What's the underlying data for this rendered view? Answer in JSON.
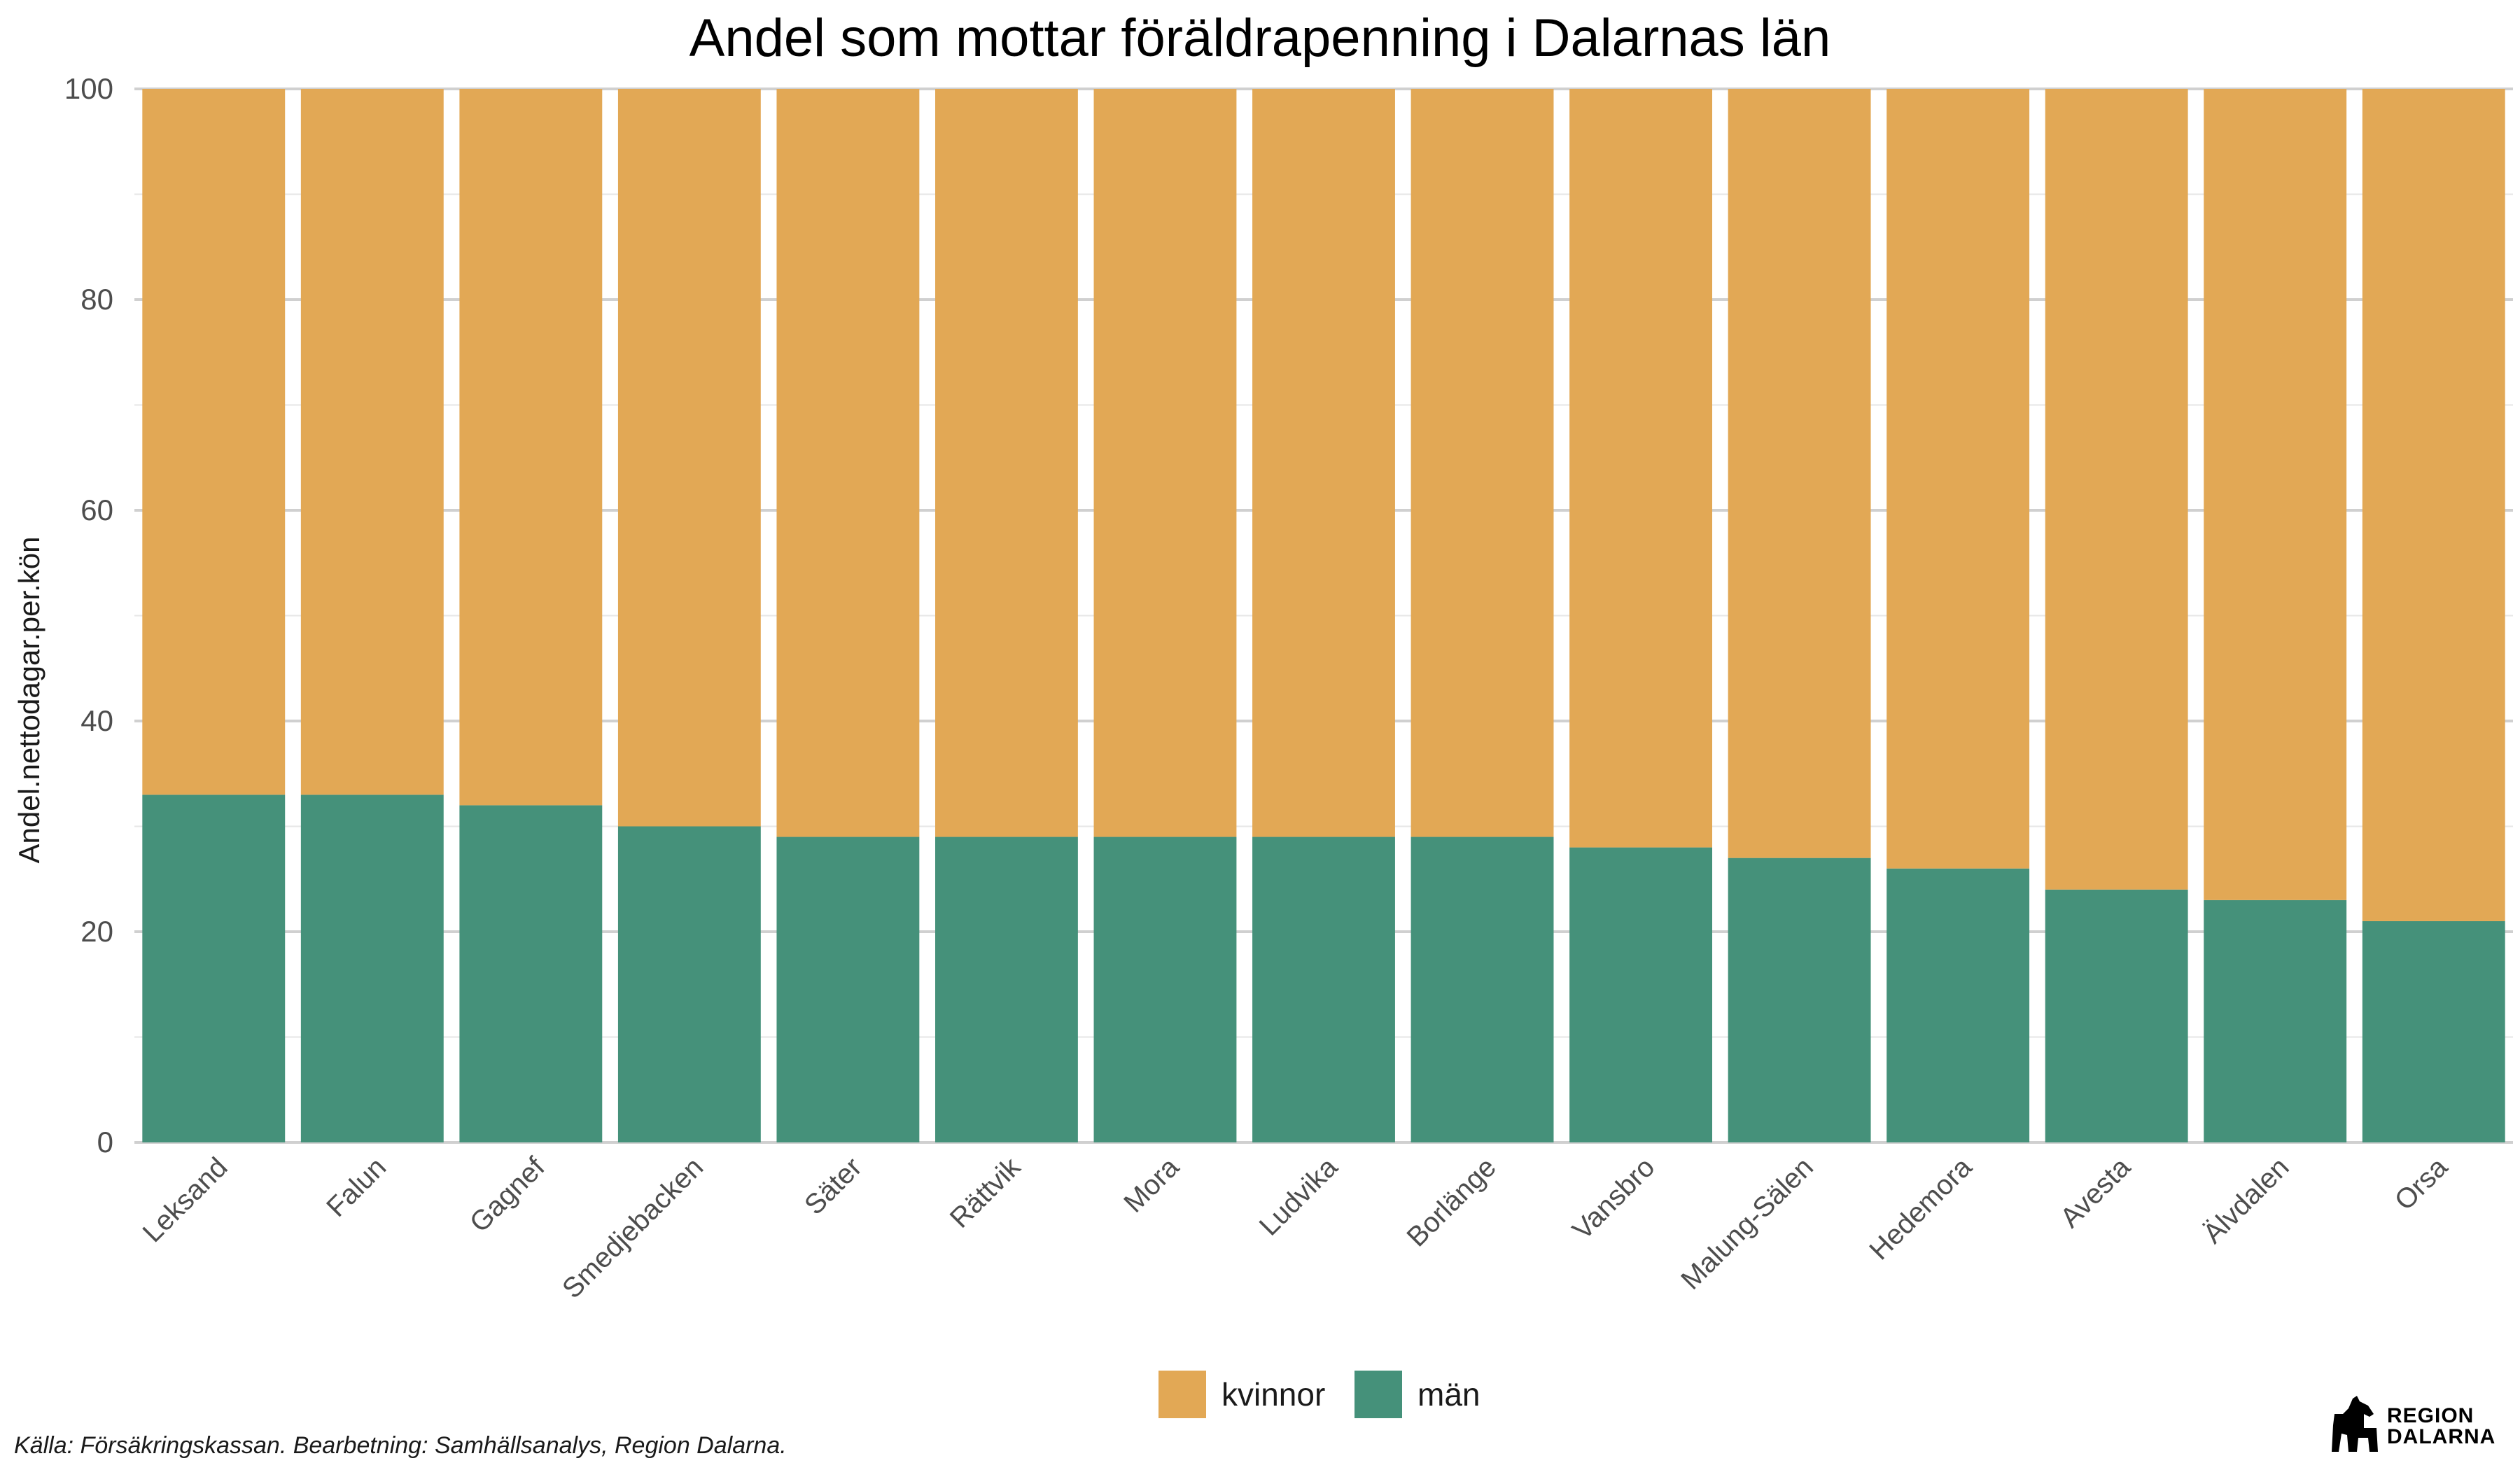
{
  "chart_data": {
    "type": "bar",
    "stacked": true,
    "title": "Andel som mottar föräldrapenning i Dalarnas län",
    "ylabel": "Andel.nettodagar.per.kön",
    "xlabel": "",
    "ylim": [
      0,
      100
    ],
    "yticks": [
      0,
      20,
      40,
      60,
      80,
      100
    ],
    "categories": [
      "Leksand",
      "Falun",
      "Gagnef",
      "Smedjebacken",
      "Säter",
      "Rättvik",
      "Mora",
      "Ludvika",
      "Borlänge",
      "Vansbro",
      "Malung-Sälen",
      "Hedemora",
      "Avesta",
      "Älvdalen",
      "Orsa"
    ],
    "series": [
      {
        "name": "män",
        "color": "#45917a",
        "values": [
          33,
          33,
          32,
          30,
          29,
          29,
          29,
          29,
          29,
          28,
          27,
          26,
          24,
          23,
          21
        ]
      },
      {
        "name": "kvinnor",
        "color": "#e2a855",
        "values": [
          67,
          67,
          68,
          70,
          71,
          71,
          71,
          71,
          71,
          72,
          73,
          74,
          76,
          77,
          79
        ]
      }
    ],
    "legend": {
      "position": "bottom",
      "order": [
        "kvinnor",
        "män"
      ]
    },
    "grid": true
  },
  "caption": "Källa: Försäkringskassan. Bearbetning: Samhällsanalys, Region Dalarna.",
  "logo": {
    "line1": "REGION",
    "line2": "DALARNA"
  }
}
